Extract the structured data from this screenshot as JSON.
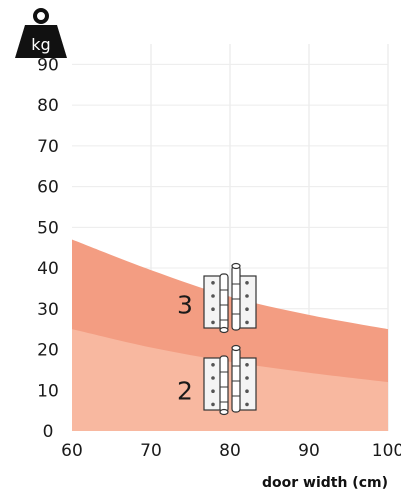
{
  "chart_data": {
    "type": "area",
    "unit_label": "kg",
    "xlabel": "door width (cm)",
    "ylabel": "",
    "xlim": [
      60,
      100
    ],
    "ylim": [
      0,
      95
    ],
    "x_ticks": [
      60,
      70,
      80,
      90,
      100
    ],
    "y_ticks": [
      0,
      10,
      20,
      30,
      40,
      50,
      60,
      70,
      80,
      90
    ],
    "grid": true,
    "series": [
      {
        "label": "2",
        "color": "#f8b8a0",
        "x": [
          60,
          70,
          80,
          90,
          100
        ],
        "y": [
          25,
          20.5,
          17,
          14.3,
          12
        ]
      },
      {
        "label": "3",
        "color": "#f39d82",
        "x": [
          60,
          70,
          80,
          90,
          100
        ],
        "y": [
          47,
          39.5,
          33,
          28.5,
          25
        ]
      }
    ]
  }
}
